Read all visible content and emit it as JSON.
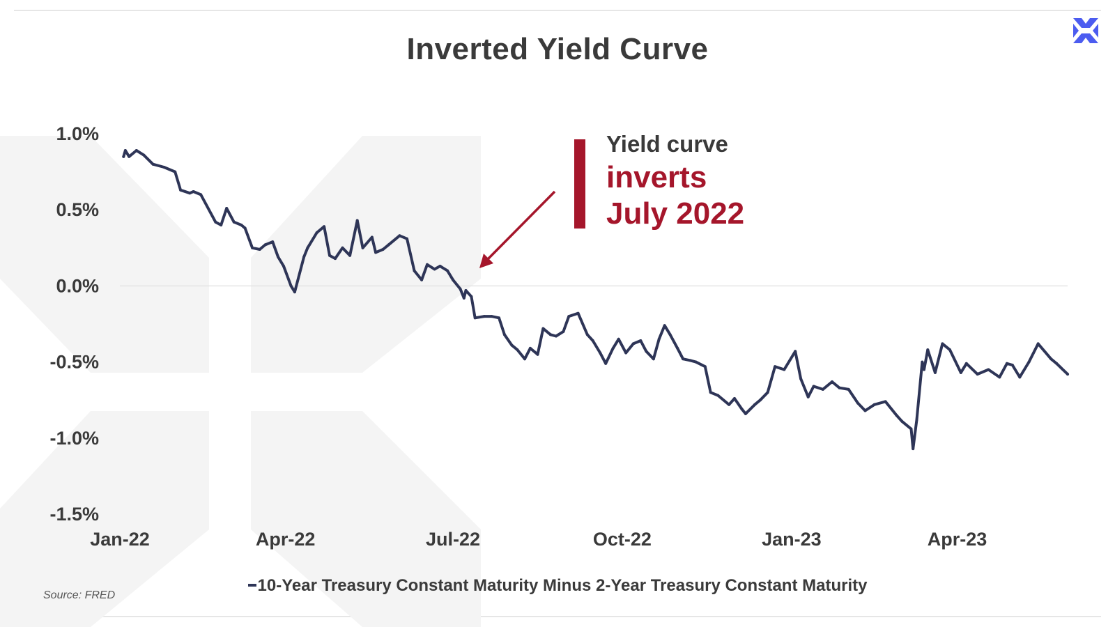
{
  "title": "Inverted Yield Curve",
  "source": "Source: FRED",
  "colors": {
    "line": "#2e3557",
    "accent": "#a5162b",
    "logo": "#4c5cf0",
    "watermark": "#f4f4f4"
  },
  "logo_icon": "x-cross-logo-icon",
  "annotation": {
    "line1": "Yield curve",
    "line2": "inverts",
    "line3": "July 2022"
  },
  "chart_data": {
    "type": "line",
    "title": "Inverted Yield Curve",
    "xlabel": "",
    "ylabel": "",
    "ylim": [
      -1.5,
      1.0
    ],
    "yticks": [
      "1.0%",
      "0.5%",
      "0.0%",
      "-0.5%",
      "-1.0%",
      "-1.5%"
    ],
    "ytick_values": [
      1.0,
      0.5,
      0.0,
      -0.5,
      -1.0,
      -1.5
    ],
    "xticks": [
      "Jan-22",
      "Apr-22",
      "Jul-22",
      "Oct-22",
      "Jan-23",
      "Apr-23"
    ],
    "xtick_dates": [
      "2022-01-01",
      "2022-04-01",
      "2022-07-01",
      "2022-10-01",
      "2023-01-01",
      "2023-04-01"
    ],
    "x_range": [
      "2022-01-01",
      "2023-05-31"
    ],
    "grid": "zero line only",
    "legend_position": "bottom",
    "series": [
      {
        "name": "10-Year Treasury Constant Maturity Minus 2-Year Treasury Constant Maturity",
        "x": [
          "2022-01-03",
          "2022-01-04",
          "2022-01-06",
          "2022-01-10",
          "2022-01-14",
          "2022-01-19",
          "2022-01-25",
          "2022-01-31",
          "2022-02-03",
          "2022-02-08",
          "2022-02-10",
          "2022-02-14",
          "2022-02-22",
          "2022-02-25",
          "2022-02-28",
          "2022-03-04",
          "2022-03-08",
          "2022-03-10",
          "2022-03-14",
          "2022-03-18",
          "2022-03-21",
          "2022-03-25",
          "2022-03-28",
          "2022-03-31",
          "2022-04-04",
          "2022-04-06",
          "2022-04-11",
          "2022-04-13",
          "2022-04-18",
          "2022-04-22",
          "2022-04-25",
          "2022-04-28",
          "2022-05-02",
          "2022-05-06",
          "2022-05-10",
          "2022-05-13",
          "2022-05-18",
          "2022-05-20",
          "2022-05-24",
          "2022-05-27",
          "2022-06-02",
          "2022-06-06",
          "2022-06-10",
          "2022-06-14",
          "2022-06-17",
          "2022-06-21",
          "2022-06-24",
          "2022-06-28",
          "2022-07-01",
          "2022-07-05",
          "2022-07-07",
          "2022-07-08",
          "2022-07-11",
          "2022-07-13",
          "2022-07-18",
          "2022-07-22",
          "2022-07-26",
          "2022-07-29",
          "2022-08-02",
          "2022-08-05",
          "2022-08-09",
          "2022-08-12",
          "2022-08-16",
          "2022-08-19",
          "2022-08-23",
          "2022-08-26",
          "2022-08-30",
          "2022-09-02",
          "2022-09-07",
          "2022-09-12",
          "2022-09-15",
          "2022-09-19",
          "2022-09-22",
          "2022-09-26",
          "2022-09-29",
          "2022-10-03",
          "2022-10-07",
          "2022-10-11",
          "2022-10-14",
          "2022-10-18",
          "2022-10-21",
          "2022-10-24",
          "2022-10-27",
          "2022-10-31",
          "2022-11-03",
          "2022-11-07",
          "2022-11-10",
          "2022-11-15",
          "2022-11-18",
          "2022-11-22",
          "2022-11-28",
          "2022-12-01",
          "2022-12-05",
          "2022-12-07",
          "2022-12-12",
          "2022-12-15",
          "2022-12-19",
          "2022-12-23",
          "2022-12-28",
          "2023-01-03",
          "2023-01-06",
          "2023-01-10",
          "2023-01-13",
          "2023-01-18",
          "2023-01-23",
          "2023-01-27",
          "2023-02-01",
          "2023-02-06",
          "2023-02-10",
          "2023-02-15",
          "2023-02-21",
          "2023-02-27",
          "2023-03-02",
          "2023-03-07",
          "2023-03-08",
          "2023-03-10",
          "2023-03-13",
          "2023-03-14",
          "2023-03-16",
          "2023-03-20",
          "2023-03-24",
          "2023-03-28",
          "2023-04-03",
          "2023-04-06",
          "2023-04-12",
          "2023-04-18",
          "2023-04-24",
          "2023-04-28",
          "2023-05-01",
          "2023-05-05",
          "2023-05-10",
          "2023-05-15",
          "2023-05-22",
          "2023-05-25",
          "2023-05-31"
        ],
        "y": [
          0.85,
          0.89,
          0.85,
          0.89,
          0.86,
          0.8,
          0.78,
          0.75,
          0.63,
          0.61,
          0.62,
          0.6,
          0.42,
          0.4,
          0.51,
          0.42,
          0.4,
          0.38,
          0.25,
          0.24,
          0.27,
          0.29,
          0.19,
          0.13,
          0.0,
          -0.04,
          0.19,
          0.25,
          0.35,
          0.39,
          0.2,
          0.18,
          0.25,
          0.2,
          0.43,
          0.25,
          0.32,
          0.22,
          0.24,
          0.27,
          0.33,
          0.31,
          0.1,
          0.04,
          0.14,
          0.11,
          0.13,
          0.1,
          0.04,
          -0.02,
          -0.08,
          -0.03,
          -0.07,
          -0.21,
          -0.2,
          -0.2,
          -0.21,
          -0.32,
          -0.39,
          -0.42,
          -0.48,
          -0.41,
          -0.45,
          -0.28,
          -0.32,
          -0.33,
          -0.3,
          -0.2,
          -0.18,
          -0.32,
          -0.36,
          -0.44,
          -0.51,
          -0.41,
          -0.35,
          -0.44,
          -0.38,
          -0.36,
          -0.43,
          -0.48,
          -0.35,
          -0.26,
          -0.32,
          -0.41,
          -0.48,
          -0.49,
          -0.5,
          -0.53,
          -0.7,
          -0.72,
          -0.78,
          -0.74,
          -0.81,
          -0.84,
          -0.78,
          -0.75,
          -0.7,
          -0.53,
          -0.55,
          -0.43,
          -0.61,
          -0.73,
          -0.66,
          -0.68,
          -0.63,
          -0.67,
          -0.68,
          -0.77,
          -0.82,
          -0.78,
          -0.76,
          -0.85,
          -0.89,
          -0.94,
          -1.07,
          -0.88,
          -0.5,
          -0.55,
          -0.42,
          -0.57,
          -0.38,
          -0.42,
          -0.57,
          -0.51,
          -0.58,
          -0.55,
          -0.6,
          -0.51,
          -0.52,
          -0.6,
          -0.5,
          -0.38,
          -0.48,
          -0.51,
          -0.58
        ]
      }
    ]
  }
}
